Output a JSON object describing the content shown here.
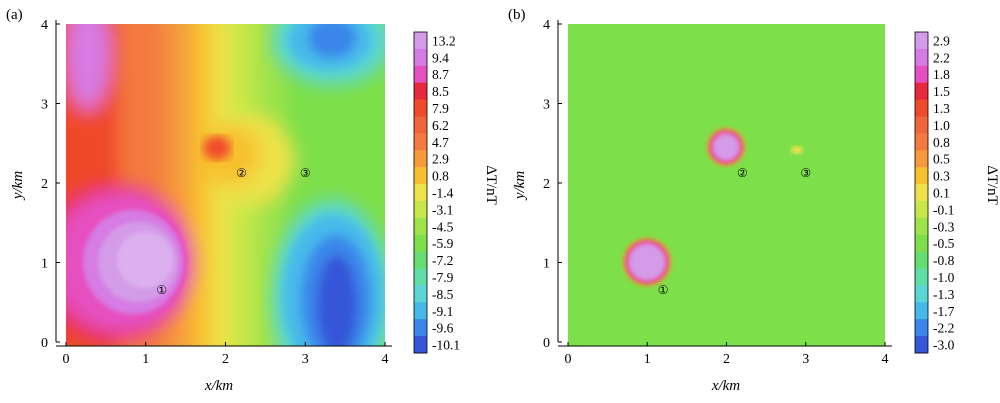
{
  "chart_data": [
    {
      "type": "heatmap",
      "panel_label": "(a)",
      "xlabel": "x/km",
      "ylabel": "y/km",
      "xlim": [
        0,
        4
      ],
      "ylim": [
        0,
        4
      ],
      "xticks": [
        "0",
        "1",
        "2",
        "3",
        "4"
      ],
      "yticks": [
        "0",
        "1",
        "2",
        "3",
        "4"
      ],
      "colorbar_label": "ΔT/nT",
      "colorbar_levels": [
        "13.2",
        "9.4",
        "8.7",
        "8.5",
        "7.9",
        "6.2",
        "4.7",
        "2.9",
        "0.8",
        "-1.4",
        "-3.1",
        "-4.5",
        "-5.9",
        "-7.2",
        "-7.9",
        "-8.5",
        "-9.1",
        "-9.6",
        "-10.1"
      ],
      "markers": [
        {
          "label": "①",
          "x": 1.2,
          "y": 0.68
        },
        {
          "label": "②",
          "x": 2.2,
          "y": 2.15
        },
        {
          "label": "③",
          "x": 3.0,
          "y": 2.15
        }
      ]
    },
    {
      "type": "heatmap",
      "panel_label": "(b)",
      "xlabel": "x/km",
      "ylabel": "y/km",
      "xlim": [
        0,
        4
      ],
      "ylim": [
        0,
        4
      ],
      "xticks": [
        "0",
        "1",
        "2",
        "3",
        "4"
      ],
      "yticks": [
        "0",
        "1",
        "2",
        "3",
        "4"
      ],
      "colorbar_label": "ΔT/nT",
      "colorbar_levels": [
        "2.9",
        "2.2",
        "1.8",
        "1.5",
        "1.3",
        "1.0",
        "0.8",
        "0.5",
        "0.3",
        "0.1",
        "-0.1",
        "-0.3",
        "-0.5",
        "-0.8",
        "-1.0",
        "-1.3",
        "-1.7",
        "-2.2",
        "-3.0"
      ],
      "markers": [
        {
          "label": "①",
          "x": 1.2,
          "y": 0.68
        },
        {
          "label": "②",
          "x": 2.2,
          "y": 2.15
        },
        {
          "label": "③",
          "x": 3.0,
          "y": 2.15
        }
      ]
    }
  ],
  "colors": {
    "palette": [
      "#d49be8",
      "#d67be4",
      "#e64fbf",
      "#e8283c",
      "#ef4a2a",
      "#f2653a",
      "#f47a3f",
      "#f69a3c",
      "#f8c02e",
      "#eee24a",
      "#c8e84a",
      "#9ee34a",
      "#7ddf49",
      "#66dd70",
      "#5fdea8",
      "#5ad6d6",
      "#46b9ea",
      "#3a86ea",
      "#3556d8"
    ]
  }
}
